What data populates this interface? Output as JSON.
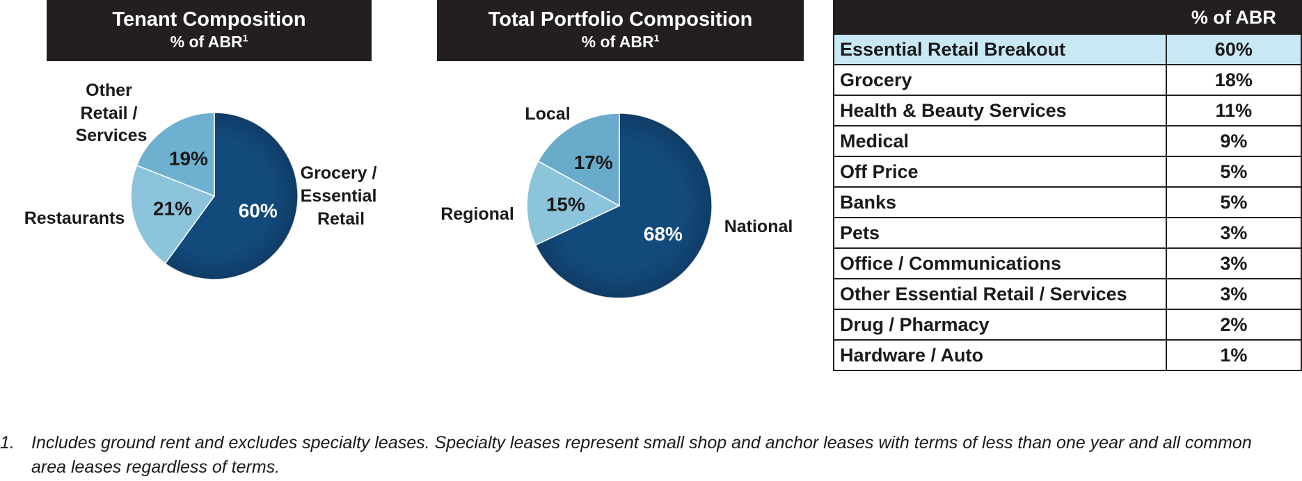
{
  "charts": {
    "tenant": {
      "title": "Tenant Composition",
      "subtitle": "% of ABR",
      "sup": "1"
    },
    "portfolio": {
      "title": "Total Portfolio Composition",
      "subtitle": "% of ABR",
      "sup": "1"
    }
  },
  "chart_data": [
    {
      "type": "pie",
      "title": "Tenant Composition",
      "subtitle": "% of ABR1",
      "slices": [
        {
          "label": "Grocery / Essential Retail",
          "value": 60,
          "display": "60%",
          "color": "#124a7c"
        },
        {
          "label": "Restaurants",
          "value": 21,
          "display": "21%",
          "color": "#8cc4dc"
        },
        {
          "label": "Other Retail / Services",
          "value": 19,
          "display": "19%",
          "color": "#6eb0cf"
        }
      ],
      "category_labels": {
        "grocery": [
          "Grocery /",
          "Essential",
          "Retail"
        ],
        "restaurants": [
          "Restaurants"
        ],
        "other": [
          "Other",
          "Retail /",
          "Services"
        ]
      }
    },
    {
      "type": "pie",
      "title": "Total Portfolio Composition",
      "subtitle": "% of ABR1",
      "slices": [
        {
          "label": "National",
          "value": 68,
          "display": "68%",
          "color": "#124a7c"
        },
        {
          "label": "Regional",
          "value": 15,
          "display": "15%",
          "color": "#8cc4dc"
        },
        {
          "label": "Local",
          "value": 17,
          "display": "17%",
          "color": "#6aaacb"
        }
      ],
      "category_labels": {
        "national": [
          "National"
        ],
        "regional": [
          "Regional"
        ],
        "local": [
          "Local"
        ]
      }
    }
  ],
  "breakout_table": {
    "header": "% of ABR",
    "highlight_row": {
      "category": "Essential Retail Breakout",
      "value": "60%"
    },
    "rows": [
      {
        "category": "Grocery",
        "value": "18%"
      },
      {
        "category": "Health & Beauty Services",
        "value": "11%"
      },
      {
        "category": "Medical",
        "value": "9%"
      },
      {
        "category": "Off Price",
        "value": "5%"
      },
      {
        "category": "Banks",
        "value": "5%"
      },
      {
        "category": "Pets",
        "value": "3%"
      },
      {
        "category": "Office / Communications",
        "value": "3%"
      },
      {
        "category": "Other Essential Retail / Services",
        "value": "3%"
      },
      {
        "category": "Drug / Pharmacy",
        "value": "2%"
      },
      {
        "category": "Hardware / Auto",
        "value": "1%"
      }
    ]
  },
  "footnote": {
    "number": "1.",
    "text": "Includes ground rent and excludes specialty leases. Specialty leases represent small shop and anchor leases with terms of less than one year and all common area leases regardless of terms."
  }
}
